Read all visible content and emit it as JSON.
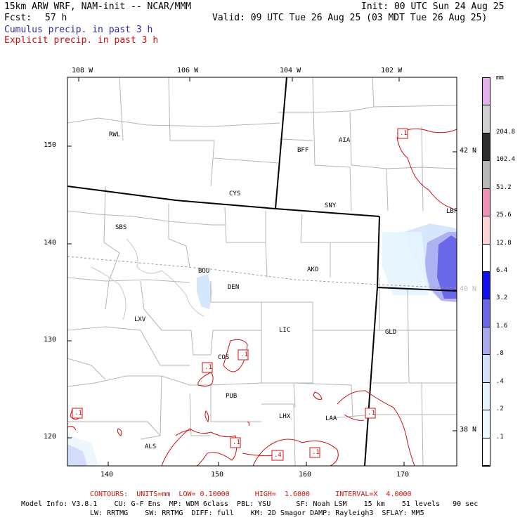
{
  "header": {
    "model_line": "15km ARW WRF, NAM-init -- NCAR/MMM",
    "init_line": "Init: 00 UTC Sun 24 Aug 25",
    "fcst_label": "Fcst:",
    "fcst_value": "57 h",
    "valid_line": "Valid: 09 UTC Tue 26 Aug 25 (03 MDT Tue 26 Aug 25)",
    "cumulus_legend": "Cumulus precip. in past 3 h",
    "explicit_legend": "Explicit precip. in past 3 h",
    "colors": {
      "cumulus": "#2a2aa8",
      "explicit": "#d01010"
    }
  },
  "map": {
    "top_lon_labels": [
      "108 W",
      "106 W",
      "104 W",
      "102 W"
    ],
    "left_grid_labels": [
      "150",
      "140",
      "130",
      "120"
    ],
    "bottom_grid_labels": [
      "140",
      "150",
      "160",
      "170"
    ],
    "right_lat_labels": [
      "42 N",
      "40 N",
      "38 N"
    ],
    "stations": [
      "RWL",
      "BFF",
      "AIA",
      "CYS",
      "SNY",
      "LBF",
      "SBS",
      "BOU",
      "DEN",
      "AKO",
      "LXV",
      "LIC",
      "GLD",
      "COS",
      "PUB",
      "LHX",
      "LAA",
      "ALS"
    ],
    "contour_labels": [
      ".1",
      ".1",
      ".1",
      ".1",
      ".1",
      ".4",
      ".1",
      ".1"
    ]
  },
  "colorbar": {
    "unit": "mm",
    "labels": [
      "204.8",
      "102.4",
      "51.2",
      "25.6",
      "12.8",
      "6.4",
      "3.2",
      "1.6",
      ".8",
      ".4",
      ".2",
      ".1"
    ],
    "colors": [
      "#e8b0f0",
      "#d0d0d0",
      "#303030",
      "#b8b8b8",
      "#f090b8",
      "#fcd4d4",
      "#ffffff",
      "#1010f0",
      "#6868e8",
      "#a8a8f0",
      "#cfe3fb",
      "#e4f4ff",
      "#eefaff",
      "#ffffff"
    ]
  },
  "footer": {
    "contours": "CONTOURS:  UNITS=mm  LOW= 0.10000      HIGH=  1.6000      INTERVAL=X  4.0000",
    "model_info_1": "Model Info: V3.8.1    CU: G-F Ens  MP: WDM 6class  PBL: YSU      SF: Noah LSM    15 km    51 levels   90 sec",
    "model_info_2": "LW: RRTMG    SW: RRTMG  DIFF: full    KM: 2D Smagor DAMP: Rayleigh3  SFLAY: MM5"
  }
}
